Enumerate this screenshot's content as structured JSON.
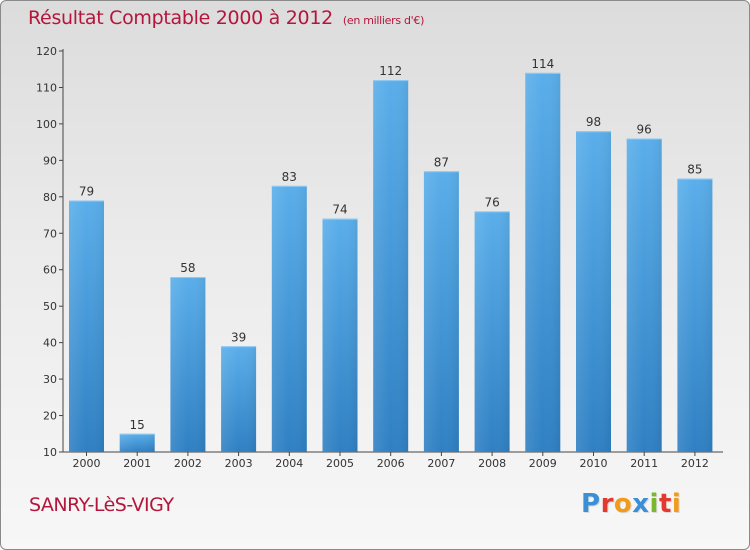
{
  "chart_data": {
    "type": "bar",
    "title": "Résultat Comptable 2000 à 2012",
    "subtitle": "(en milliers d'€)",
    "categories": [
      "2000",
      "2001",
      "2002",
      "2003",
      "2004",
      "2005",
      "2006",
      "2007",
      "2008",
      "2009",
      "2010",
      "2011",
      "2012"
    ],
    "values": [
      79,
      15,
      58,
      39,
      83,
      74,
      112,
      87,
      76,
      114,
      98,
      96,
      85
    ],
    "ylim": [
      10,
      120
    ],
    "yticks": [
      10,
      20,
      30,
      40,
      50,
      60,
      70,
      80,
      90,
      100,
      110,
      120
    ],
    "xlabel": "",
    "ylabel": "",
    "grid": false,
    "bar_color": "#4a9de0"
  },
  "footer": {
    "town": "SANRY-LèS-VIGY"
  },
  "logo": {
    "letters": [
      {
        "char": "P",
        "color": "#3a8fd6"
      },
      {
        "char": "r",
        "color": "#e23a2e"
      },
      {
        "char": "o",
        "color": "#f29a1a"
      },
      {
        "char": "x",
        "color": "#3a8fd6"
      },
      {
        "char": "i",
        "color": "#7ab92d"
      },
      {
        "char": "t",
        "color": "#e23a2e"
      },
      {
        "char": "i",
        "color": "#f29a1a"
      }
    ]
  },
  "colors": {
    "title": "#b5153b",
    "axis": "#444444",
    "text": "#333333"
  }
}
